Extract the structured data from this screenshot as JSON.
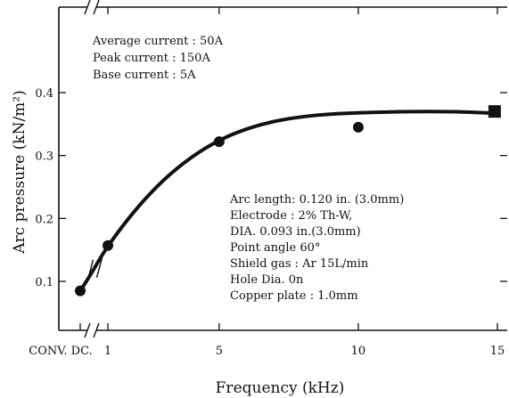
{
  "chart_data": {
    "type": "scatter",
    "title": "",
    "xlabel": "Frequency (kHz)",
    "ylabel": "Arc pressure (kN/m²)",
    "xlim": [
      0,
      15
    ],
    "ylim": [
      0.06,
      0.44
    ],
    "x_break": true,
    "x_ticks": [
      {
        "value": 0,
        "label": "CONV. DC."
      },
      {
        "value": 1,
        "label": "1"
      },
      {
        "value": 5,
        "label": "5"
      },
      {
        "value": 10,
        "label": "10"
      },
      {
        "value": 15,
        "label": "15"
      }
    ],
    "y_ticks": [
      {
        "value": 0.1,
        "label": "0.1"
      },
      {
        "value": 0.2,
        "label": "0.2"
      },
      {
        "value": 0.3,
        "label": "0.3"
      },
      {
        "value": 0.4,
        "label": "0.4"
      }
    ],
    "grid": false,
    "points": [
      {
        "x": 0,
        "y": 0.085
      },
      {
        "x": 1,
        "y": 0.157
      },
      {
        "x": 5,
        "y": 0.322
      },
      {
        "x": 10,
        "y": 0.345
      },
      {
        "x": 14.9,
        "y": 0.37
      }
    ],
    "fit_curve": [
      {
        "x": 0,
        "y": 0.085
      },
      {
        "x": 0.3,
        "y": 0.105
      },
      {
        "x": 0.7,
        "y": 0.135
      },
      {
        "x": 1,
        "y": 0.157
      },
      {
        "x": 2,
        "y": 0.215
      },
      {
        "x": 3,
        "y": 0.262
      },
      {
        "x": 4,
        "y": 0.298
      },
      {
        "x": 5,
        "y": 0.325
      },
      {
        "x": 6,
        "y": 0.343
      },
      {
        "x": 7,
        "y": 0.355
      },
      {
        "x": 8,
        "y": 0.362
      },
      {
        "x": 9,
        "y": 0.366
      },
      {
        "x": 10,
        "y": 0.368
      },
      {
        "x": 11,
        "y": 0.369
      },
      {
        "x": 12,
        "y": 0.37
      },
      {
        "x": 13,
        "y": 0.37
      },
      {
        "x": 14,
        "y": 0.369
      },
      {
        "x": 15,
        "y": 0.367
      }
    ],
    "annotations": {
      "top_left": [
        "Average current : 50A",
        "Peak current : 150A",
        "Base current : 5A"
      ],
      "bottom_right": [
        "Arc length: 0.120 in. (3.0mm)",
        "Electrode : 2% Th-W,",
        "DIA. 0.093 in.(3.0mm)",
        "Point angle 60°",
        "Shield gas : Ar 15L/min",
        "Hole Dia. 0n",
        "Copper plate : 1.0mm"
      ]
    },
    "colors": {
      "ink": "#111111",
      "background": "#ffffff"
    }
  }
}
